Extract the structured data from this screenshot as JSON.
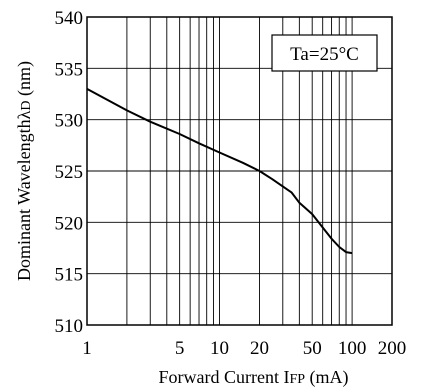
{
  "chart_data": {
    "type": "line",
    "xlabel_prefix": "Forward Current I",
    "xlabel_sub": "FP",
    "xlabel_suffix": " (mA)",
    "ylabel_prefix": "Dominant Wavelength",
    "ylabel_symbol": "λ",
    "ylabel_sub": "D",
    "ylabel_suffix": " (nm)",
    "annotation": "Ta=25°C",
    "x_scale": "log",
    "xlim": [
      1,
      200
    ],
    "ylim": [
      510,
      540
    ],
    "x_ticks": [
      {
        "value": 1,
        "label": "1"
      },
      {
        "value": 5,
        "label": "5"
      },
      {
        "value": 10,
        "label": "10"
      },
      {
        "value": 20,
        "label": "20"
      },
      {
        "value": 50,
        "label": "50"
      },
      {
        "value": 100,
        "label": "100"
      },
      {
        "value": 200,
        "label": "200"
      }
    ],
    "y_ticks": [
      {
        "value": 510,
        "label": "510"
      },
      {
        "value": 515,
        "label": "515"
      },
      {
        "value": 520,
        "label": "520"
      },
      {
        "value": 525,
        "label": "525"
      },
      {
        "value": 530,
        "label": "530"
      },
      {
        "value": 535,
        "label": "535"
      },
      {
        "value": 540,
        "label": "540"
      }
    ],
    "x_gridlines": [
      2,
      3,
      4,
      5,
      6,
      7,
      8,
      9,
      10,
      20,
      30,
      40,
      50,
      60,
      70,
      80,
      90,
      100
    ],
    "y_gridlines": [
      515,
      520,
      525,
      530,
      535
    ],
    "grid": true,
    "series": [
      {
        "color": "#000000",
        "x": [
          1,
          2,
          3,
          5,
          7,
          10,
          15,
          20,
          25,
          30,
          35,
          40,
          50,
          60,
          70,
          80,
          90,
          100
        ],
        "y": [
          533,
          530.9,
          529.8,
          528.6,
          527.7,
          526.8,
          525.8,
          525.0,
          524.2,
          523.5,
          522.9,
          521.9,
          520.8,
          519.5,
          518.4,
          517.6,
          517.1,
          517.0
        ]
      }
    ]
  }
}
